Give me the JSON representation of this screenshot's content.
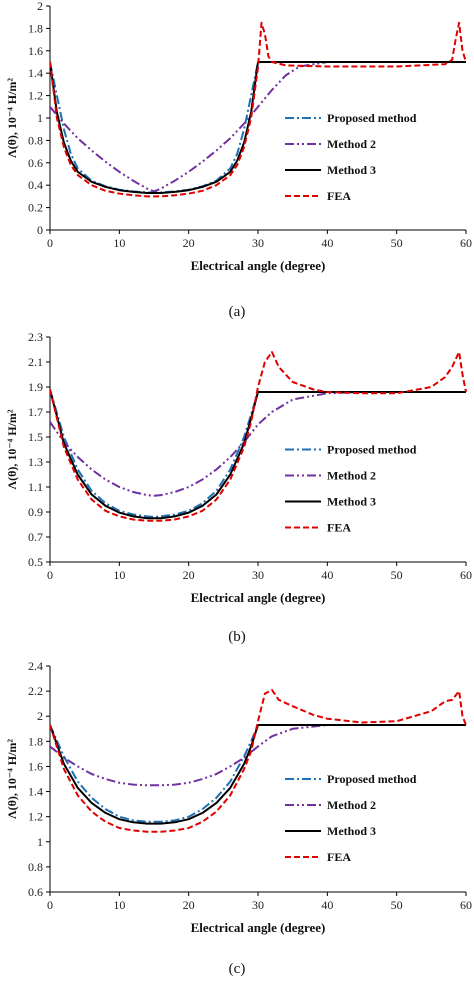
{
  "chart_data": [
    {
      "type": "line",
      "caption": "(a)",
      "xlabel": "Electrical angle (degree)",
      "ylabel": "Λ(θ), 10⁻⁴ H/m²",
      "xlim": [
        0,
        60
      ],
      "ylim": [
        0,
        2
      ],
      "xticks": [
        "0",
        "10",
        "20",
        "30",
        "40",
        "50",
        "60"
      ],
      "yticks": [
        "0",
        "0.2",
        "0.4",
        "0.6",
        "0.8",
        "1",
        "1.2",
        "1.4",
        "1.6",
        "1.8",
        "2"
      ],
      "legend_position": "right-middle",
      "series": [
        {
          "name": "Proposed method",
          "color": "#1f6fb4",
          "dash": "dashdot",
          "x": [
            0,
            1,
            2,
            3,
            4,
            6,
            8,
            10,
            12,
            14,
            15,
            16,
            18,
            20,
            22,
            24,
            26,
            27,
            28,
            29,
            30,
            35,
            40,
            50,
            60
          ],
          "y": [
            1.5,
            1.2,
            0.9,
            0.68,
            0.55,
            0.44,
            0.39,
            0.36,
            0.345,
            0.335,
            0.335,
            0.335,
            0.345,
            0.36,
            0.39,
            0.44,
            0.55,
            0.68,
            0.9,
            1.2,
            1.5,
            1.5,
            1.5,
            1.5,
            1.5
          ]
        },
        {
          "name": "Method 2",
          "color": "#7030a0",
          "dash": "dashdotdot",
          "x": [
            0,
            2,
            4,
            6,
            8,
            10,
            12,
            14,
            15,
            16,
            18,
            20,
            22,
            24,
            26,
            28,
            30,
            32,
            34,
            36,
            40,
            50,
            60
          ],
          "y": [
            1.1,
            0.95,
            0.82,
            0.71,
            0.61,
            0.52,
            0.44,
            0.37,
            0.345,
            0.37,
            0.44,
            0.52,
            0.61,
            0.71,
            0.82,
            0.95,
            1.1,
            1.25,
            1.38,
            1.46,
            1.5,
            1.5,
            1.5
          ]
        },
        {
          "name": "Method 3",
          "color": "#000000",
          "dash": "solid",
          "x": [
            0,
            1,
            2,
            3,
            4,
            6,
            8,
            10,
            12,
            14,
            15,
            16,
            18,
            20,
            22,
            24,
            26,
            27,
            28,
            29,
            30,
            35,
            40,
            50,
            60
          ],
          "y": [
            1.5,
            1.05,
            0.78,
            0.62,
            0.52,
            0.43,
            0.385,
            0.355,
            0.34,
            0.33,
            0.33,
            0.33,
            0.34,
            0.355,
            0.385,
            0.43,
            0.52,
            0.62,
            0.78,
            1.05,
            1.5,
            1.5,
            1.5,
            1.5,
            1.5
          ]
        },
        {
          "name": "FEA",
          "color": "#e00000",
          "dash": "dashed",
          "x": [
            0,
            1,
            2,
            3,
            4,
            6,
            8,
            10,
            12,
            14,
            15,
            16,
            18,
            20,
            22,
            24,
            26,
            27,
            28,
            29,
            30,
            30.5,
            31,
            31.5,
            32,
            34,
            40,
            50,
            57,
            58,
            58.5,
            59,
            59.5,
            60
          ],
          "y": [
            1.5,
            1.0,
            0.74,
            0.58,
            0.49,
            0.4,
            0.35,
            0.325,
            0.31,
            0.3,
            0.3,
            0.3,
            0.31,
            0.325,
            0.35,
            0.4,
            0.49,
            0.58,
            0.74,
            1.0,
            1.45,
            1.85,
            1.75,
            1.55,
            1.5,
            1.47,
            1.46,
            1.46,
            1.48,
            1.52,
            1.7,
            1.85,
            1.6,
            1.5
          ]
        }
      ]
    },
    {
      "type": "line",
      "caption": "(b)",
      "xlabel": "Electrical angle (degree)",
      "ylabel": "Λ(θ), 10⁻⁴ H/m²",
      "xlim": [
        0,
        60
      ],
      "ylim": [
        0.5,
        2.3
      ],
      "xticks": [
        "0",
        "10",
        "20",
        "30",
        "40",
        "50",
        "60"
      ],
      "yticks": [
        "0.5",
        "0.7",
        "0.9",
        "1.1",
        "1.3",
        "1.5",
        "1.7",
        "1.9",
        "2.1",
        "2.3"
      ],
      "legend_position": "right-middle",
      "series": [
        {
          "name": "Proposed method",
          "color": "#1f6fb4",
          "dash": "dashdot",
          "x": [
            0,
            2,
            4,
            6,
            8,
            10,
            12,
            14,
            15,
            16,
            18,
            20,
            22,
            24,
            26,
            28,
            29,
            30,
            35,
            40,
            50,
            60
          ],
          "y": [
            1.88,
            1.5,
            1.24,
            1.07,
            0.97,
            0.91,
            0.88,
            0.865,
            0.86,
            0.865,
            0.88,
            0.91,
            0.97,
            1.07,
            1.24,
            1.5,
            1.68,
            1.86,
            1.86,
            1.86,
            1.86,
            1.86
          ]
        },
        {
          "name": "Method 2",
          "color": "#7030a0",
          "dash": "dashdotdot",
          "x": [
            0,
            2,
            4,
            6,
            8,
            10,
            12,
            14,
            15,
            16,
            18,
            20,
            22,
            24,
            26,
            28,
            30,
            32,
            35,
            40,
            45,
            50,
            60
          ],
          "y": [
            1.62,
            1.46,
            1.34,
            1.24,
            1.16,
            1.1,
            1.06,
            1.035,
            1.03,
            1.035,
            1.06,
            1.1,
            1.16,
            1.24,
            1.34,
            1.46,
            1.6,
            1.7,
            1.8,
            1.85,
            1.86,
            1.86,
            1.86
          ]
        },
        {
          "name": "Method 3",
          "color": "#000000",
          "dash": "solid",
          "x": [
            0,
            2,
            4,
            6,
            8,
            10,
            12,
            14,
            15,
            16,
            18,
            20,
            22,
            24,
            26,
            28,
            29,
            30,
            35,
            40,
            50,
            60
          ],
          "y": [
            1.88,
            1.45,
            1.2,
            1.04,
            0.95,
            0.895,
            0.865,
            0.85,
            0.85,
            0.85,
            0.865,
            0.895,
            0.95,
            1.04,
            1.2,
            1.45,
            1.65,
            1.86,
            1.86,
            1.86,
            1.86,
            1.86
          ]
        },
        {
          "name": "FEA",
          "color": "#e00000",
          "dash": "dashed",
          "x": [
            0,
            2,
            4,
            6,
            8,
            10,
            12,
            14,
            15,
            16,
            18,
            20,
            22,
            24,
            26,
            28,
            29,
            30,
            31,
            32,
            33,
            35,
            38,
            40,
            45,
            50,
            55,
            57,
            58,
            59,
            59.5,
            60
          ],
          "y": [
            1.88,
            1.42,
            1.16,
            1.0,
            0.91,
            0.865,
            0.84,
            0.83,
            0.83,
            0.83,
            0.84,
            0.865,
            0.91,
            1.0,
            1.16,
            1.42,
            1.62,
            1.9,
            2.1,
            2.18,
            2.06,
            1.94,
            1.88,
            1.86,
            1.85,
            1.85,
            1.9,
            1.98,
            2.06,
            2.18,
            2.0,
            1.86
          ]
        }
      ]
    },
    {
      "type": "line",
      "caption": "(c)",
      "xlabel": "Electrical angle (degree)",
      "ylabel": "Λ(θ), 10⁻⁴ H/m²",
      "xlim": [
        0,
        60
      ],
      "ylim": [
        0.6,
        2.4
      ],
      "xticks": [
        "0",
        "10",
        "20",
        "30",
        "40",
        "50",
        "60"
      ],
      "yticks": [
        "0.6",
        "0.8",
        "1",
        "1.2",
        "1.4",
        "1.6",
        "1.8",
        "2",
        "2.2",
        "2.4"
      ],
      "legend_position": "right-middle",
      "series": [
        {
          "name": "Proposed method",
          "color": "#1f6fb4",
          "dash": "dashdot",
          "x": [
            0,
            2,
            4,
            6,
            8,
            10,
            12,
            14,
            15,
            16,
            18,
            20,
            22,
            24,
            26,
            28,
            29,
            30,
            35,
            40,
            50,
            60
          ],
          "y": [
            1.93,
            1.68,
            1.48,
            1.35,
            1.26,
            1.2,
            1.17,
            1.16,
            1.16,
            1.16,
            1.17,
            1.2,
            1.26,
            1.35,
            1.48,
            1.68,
            1.8,
            1.93,
            1.93,
            1.93,
            1.93,
            1.93
          ]
        },
        {
          "name": "Method 2",
          "color": "#7030a0",
          "dash": "dashdotdot",
          "x": [
            0,
            2,
            4,
            6,
            8,
            10,
            12,
            14,
            15,
            16,
            18,
            20,
            22,
            24,
            26,
            28,
            30,
            32,
            35,
            40,
            45,
            50,
            60
          ],
          "y": [
            1.76,
            1.67,
            1.6,
            1.54,
            1.5,
            1.47,
            1.455,
            1.45,
            1.45,
            1.45,
            1.455,
            1.47,
            1.5,
            1.54,
            1.6,
            1.67,
            1.76,
            1.84,
            1.9,
            1.93,
            1.93,
            1.93,
            1.93
          ]
        },
        {
          "name": "Method 3",
          "color": "#000000",
          "dash": "solid",
          "x": [
            0,
            2,
            4,
            6,
            8,
            10,
            12,
            14,
            15,
            16,
            18,
            20,
            22,
            24,
            26,
            28,
            29,
            30,
            35,
            40,
            50,
            60
          ],
          "y": [
            1.93,
            1.62,
            1.43,
            1.31,
            1.23,
            1.18,
            1.155,
            1.145,
            1.145,
            1.145,
            1.155,
            1.18,
            1.23,
            1.31,
            1.43,
            1.62,
            1.76,
            1.93,
            1.93,
            1.93,
            1.93,
            1.93
          ]
        },
        {
          "name": "FEA",
          "color": "#e00000",
          "dash": "dashed",
          "x": [
            0,
            2,
            4,
            6,
            8,
            10,
            12,
            14,
            15,
            16,
            18,
            20,
            22,
            24,
            26,
            28,
            29,
            30,
            31,
            32,
            33,
            35,
            38,
            40,
            45,
            50,
            55,
            57,
            58,
            59,
            59.5,
            60
          ],
          "y": [
            1.93,
            1.58,
            1.37,
            1.24,
            1.16,
            1.11,
            1.09,
            1.08,
            1.08,
            1.08,
            1.09,
            1.11,
            1.16,
            1.24,
            1.37,
            1.58,
            1.72,
            1.96,
            2.18,
            2.21,
            2.13,
            2.08,
            2.01,
            1.98,
            1.95,
            1.96,
            2.04,
            2.12,
            2.13,
            2.2,
            2.0,
            1.93
          ]
        }
      ]
    }
  ]
}
